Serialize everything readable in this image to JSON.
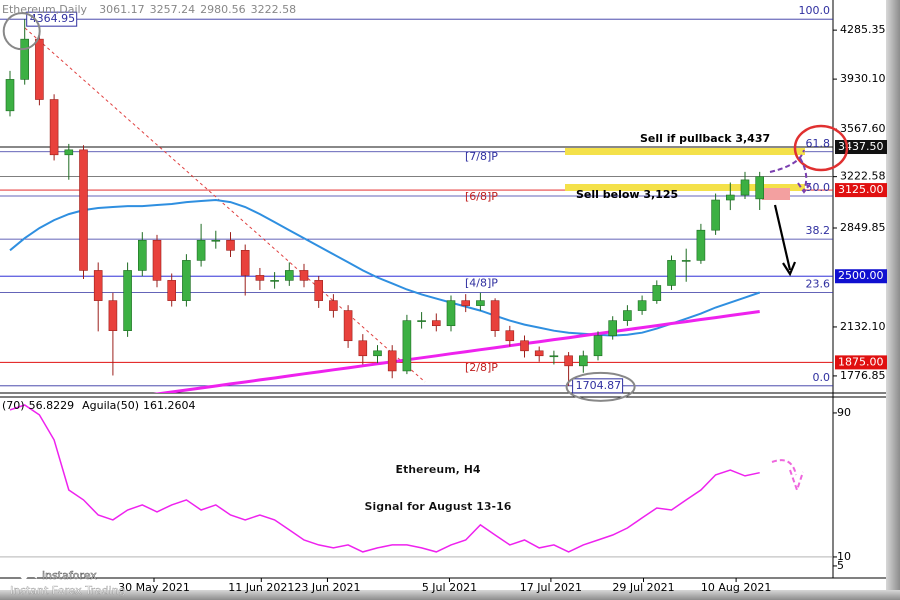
{
  "chart_data": {
    "type": "candlestick",
    "header": "Ethereum,Daily",
    "title": "Ethereum, H4",
    "subtitle": "Signal for August 13-16",
    "open": [
      3700,
      3928,
      4220,
      3782,
      3381,
      3417,
      2542,
      2323,
      2105,
      2542,
      2761,
      2470,
      2323,
      2615,
      2761,
      2761,
      2688,
      2506,
      2470,
      2470,
      2542,
      2470,
      2323,
      2251,
      2032,
      1923,
      1959,
      1813,
      2178,
      2178,
      2141,
      2323,
      2287,
      2323,
      2105,
      2032,
      1959,
      1923,
      1923,
      1850,
      1923,
      2069,
      2178,
      2251,
      2323,
      2433,
      2615,
      2615,
      2834,
      3053,
      3089,
      3061.17
    ],
    "high": [
      3990,
      4364.95,
      4260,
      3820,
      3460,
      3450,
      2600,
      2380,
      2600,
      2820,
      2800,
      2520,
      2660,
      2880,
      2830,
      2820,
      2730,
      2560,
      2530,
      2600,
      2590,
      2500,
      2370,
      2290,
      2080,
      2000,
      2000,
      2220,
      2240,
      2230,
      2360,
      2370,
      2380,
      2340,
      2140,
      2070,
      1990,
      1960,
      1950,
      1960,
      2100,
      2210,
      2290,
      2360,
      2470,
      2650,
      2700,
      2880,
      3100,
      3180,
      3257.24,
      3257.24
    ],
    "low": [
      3660,
      3890,
      3740,
      3340,
      3200,
      2480,
      2100,
      1780,
      2060,
      2500,
      2420,
      2280,
      2280,
      2570,
      2700,
      2640,
      2360,
      2400,
      2410,
      2430,
      2420,
      2270,
      2200,
      1980,
      1860,
      1870,
      1760,
      1790,
      2120,
      2100,
      2100,
      2240,
      2250,
      2060,
      1990,
      1910,
      1880,
      1860,
      1704.87,
      1800,
      1890,
      2040,
      2140,
      2220,
      2300,
      2400,
      2460,
      2590,
      2800,
      2980,
      3060,
      2980.56
    ],
    "close": [
      3928,
      4220,
      3782,
      3381,
      3417,
      2542,
      2323,
      2105,
      2542,
      2761,
      2470,
      2323,
      2615,
      2761,
      2761,
      2688,
      2506,
      2470,
      2470,
      2542,
      2470,
      2323,
      2251,
      2032,
      1923,
      1959,
      1813,
      2178,
      2178,
      2141,
      2323,
      2287,
      2323,
      2105,
      2032,
      1959,
      1923,
      1923,
      1850,
      1923,
      2069,
      2178,
      2251,
      2323,
      2433,
      2615,
      2615,
      2834,
      3053,
      3089,
      3199,
      3222.58
    ],
    "up_color": "#3cb043",
    "down_color": "#e8413c",
    "ma_lines": [
      {
        "color": "#2f8fe0",
        "values": [
          2688,
          2776,
          2849,
          2907,
          2951,
          2980,
          2995,
          3002,
          3009,
          3009,
          3017,
          3024,
          3038,
          3046,
          3053,
          3038,
          3002,
          2951,
          2893,
          2834,
          2776,
          2718,
          2659,
          2601,
          2542,
          2491,
          2448,
          2404,
          2368,
          2338,
          2309,
          2280,
          2251,
          2214,
          2178,
          2149,
          2127,
          2105,
          2090,
          2083,
          2076,
          2069,
          2076,
          2090,
          2120,
          2156,
          2192,
          2229,
          2273,
          2309,
          2345,
          2382
        ]
      },
      {
        "color": "#ee22ee",
        "values": [
          null,
          null,
          null,
          null,
          null,
          null,
          null,
          null,
          null,
          1631,
          1646,
          1660,
          1675,
          1689,
          1704,
          1719,
          1733,
          1748,
          1762,
          1777,
          1792,
          1806,
          1821,
          1835,
          1850,
          1865,
          1879,
          1894,
          1908,
          1923,
          1938,
          1952,
          1967,
          1981,
          1996,
          2011,
          2025,
          2040,
          2054,
          2069,
          2084,
          2098,
          2113,
          2127,
          2142,
          2157,
          2171,
          2186,
          2200,
          2215,
          2230,
          2244
        ]
      }
    ],
    "ylim": [
      1652.9,
      4475
    ],
    "yticks": [
      {
        "value": 4285.35,
        "label": "4285.35"
      },
      {
        "value": 3930.1,
        "label": "3930.10"
      },
      {
        "value": 3567.6,
        "label": "3567.60"
      },
      3222.58,
      2849.85,
      {
        "value": 2132.1,
        "label": "2132.10"
      },
      1776.85
    ],
    "levels": [
      {
        "value": 3437.5,
        "label": "3437.50",
        "color": "#111111"
      },
      {
        "value": 3125,
        "label": "3125.00",
        "color": "#e01010"
      },
      {
        "value": 2500,
        "label": "2500.00",
        "color": "#1010d0"
      },
      {
        "value": 1875,
        "label": "1875.00",
        "color": "#e01010"
      }
    ],
    "fib": [
      {
        "value": 4364.95,
        "label": "100.0"
      },
      {
        "value": 3403,
        "label": "61.8"
      },
      {
        "value": 3082,
        "label": "50.0"
      },
      {
        "value": 2769,
        "label": "38.2"
      },
      {
        "value": 2382,
        "label": "23.6"
      },
      {
        "value": 1704.87,
        "label": "0.0"
      }
    ],
    "murray": [
      {
        "value": 3366,
        "label": "[7/8]P"
      },
      {
        "value": 3075,
        "label": "[6/8]P"
      },
      {
        "value": 2448,
        "label": "[4/8]P"
      },
      {
        "value": 1835,
        "label": "[2/8]P"
      }
    ],
    "xticks": [
      {
        "value": 11.7,
        "label": "30 May 2021"
      },
      {
        "value": 19,
        "label": "11 Jun 2021"
      },
      {
        "value": 23.5,
        "label": "23 Jun 2021"
      },
      {
        "value": 31.8,
        "label": "5 Jul 2021"
      },
      {
        "value": 38.7,
        "label": "17 Jul 2021"
      },
      {
        "value": 45,
        "label": "29 Jul 2021"
      },
      {
        "value": 51.3,
        "label": "10 Aug 2021"
      }
    ],
    "annotations": [
      "Sell if pullback 3,437",
      "Sell below 3,125"
    ],
    "indicator": {
      "name": "(70)",
      "name2": "Aguila(50)",
      "value2": 161.2604,
      "color": "#ee22ee",
      "values": [
        91.7,
        94.4,
        88.9,
        75,
        47.2,
        41.7,
        33.3,
        30.6,
        36.1,
        38.9,
        35,
        38.9,
        41.7,
        36.1,
        38.9,
        33.3,
        30.6,
        33.3,
        30.6,
        25,
        19.4,
        16.7,
        15,
        16.7,
        12.8,
        15,
        16.7,
        16.7,
        15,
        12.8,
        16.7,
        19.4,
        27.8,
        22.2,
        16.7,
        19.4,
        15,
        16.7,
        12.8,
        16.7,
        19.4,
        22.2,
        26.1,
        31.7,
        37.2,
        36.1,
        41.7,
        47.2,
        55.6,
        58.3,
        55,
        56.8229
      ],
      "ylim": [
        -1.7,
        98.3
      ],
      "yticks": [
        90,
        10,
        5
      ]
    }
  },
  "logo": {
    "brand": "instaforex",
    "tagline": "Instant Forex Trading"
  }
}
